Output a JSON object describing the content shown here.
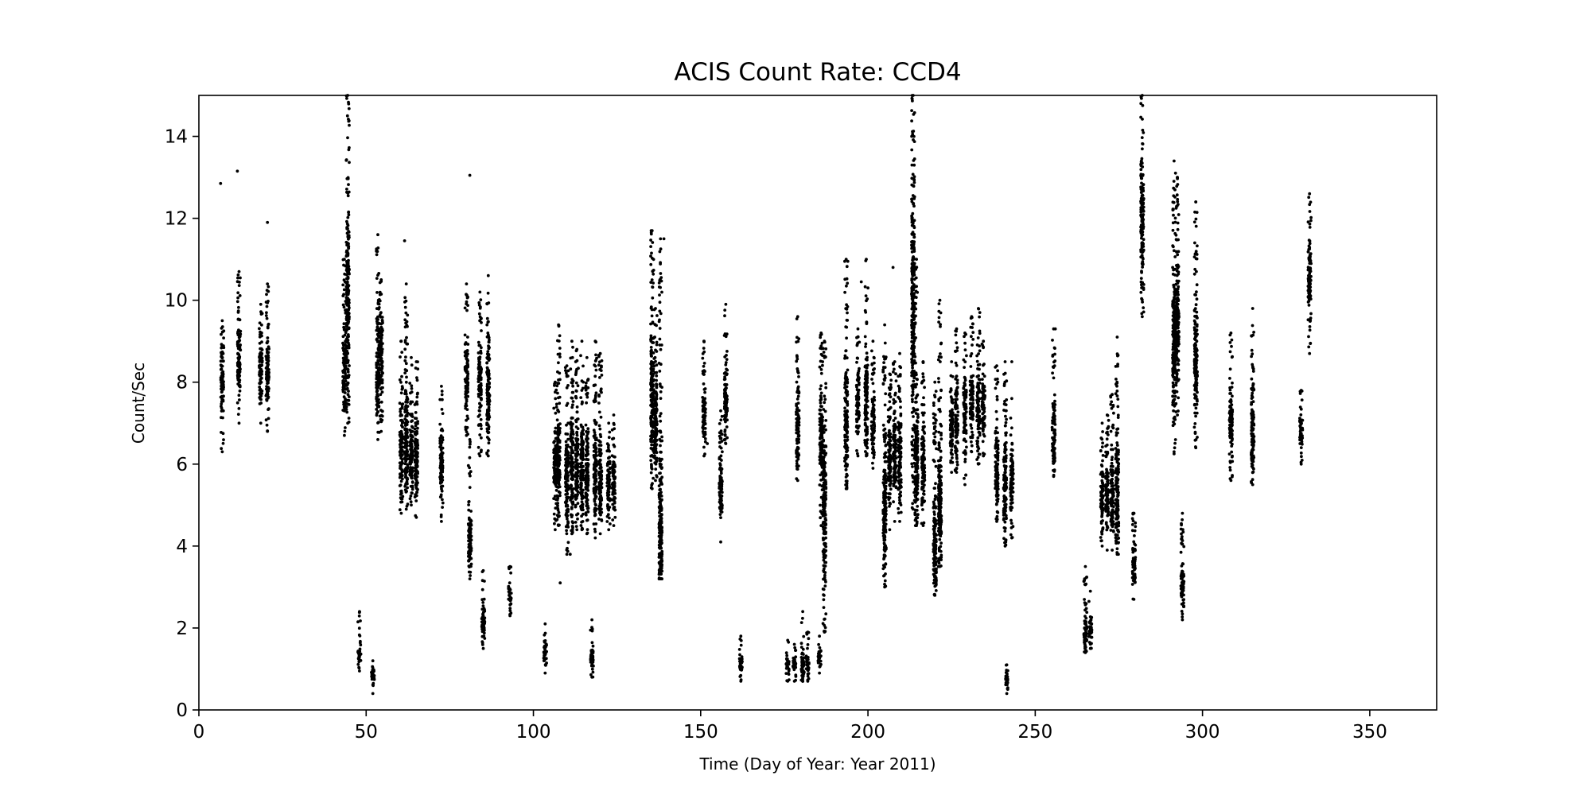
{
  "chart_data": {
    "type": "scatter",
    "title": "ACIS Count Rate: CCD4",
    "xlabel": "Time (Day of Year: Year 2011)",
    "ylabel": "Count/Sec",
    "xlim": [
      0,
      370
    ],
    "ylim": [
      0,
      15
    ],
    "xticks": [
      0,
      50,
      100,
      150,
      200,
      250,
      300,
      350
    ],
    "yticks": [
      0,
      2,
      4,
      6,
      8,
      10,
      12,
      14
    ],
    "grid": false,
    "legend": "none",
    "marker_color": "#000000",
    "series": [
      {
        "note_format": "each cluster = [day, min_count, max_count, dense_center]",
        "clusters": [
          [
            7,
            6.3,
            9.5,
            8.0
          ],
          [
            12,
            7.0,
            10.7,
            8.5
          ],
          [
            18.5,
            7.0,
            9.9,
            8.3
          ],
          [
            20.5,
            6.8,
            10.4,
            8.4
          ],
          [
            43.5,
            6.7,
            11.0,
            8.3
          ],
          [
            44.5,
            7.0,
            15.0,
            10.0
          ],
          [
            48,
            0.95,
            2.4,
            1.4
          ],
          [
            52,
            0.4,
            1.2,
            0.8
          ],
          [
            53.5,
            6.6,
            11.6,
            8.5
          ],
          [
            54.5,
            6.8,
            10.5,
            8.5
          ],
          [
            60.5,
            4.8,
            9.0,
            6.2
          ],
          [
            62,
            4.9,
            10.4,
            6.5
          ],
          [
            63.5,
            5.0,
            8.6,
            6.2
          ],
          [
            65,
            4.7,
            8.5,
            6.2
          ],
          [
            72.5,
            4.6,
            7.9,
            6.0
          ],
          [
            80,
            6.7,
            10.4,
            8.2
          ],
          [
            81,
            3.2,
            6.6,
            4.2
          ],
          [
            84,
            6.2,
            10.2,
            8.0
          ],
          [
            85,
            1.5,
            3.4,
            2.1
          ],
          [
            86.5,
            6.2,
            10.6,
            8.0
          ],
          [
            93,
            2.3,
            3.5,
            2.8
          ],
          [
            103.5,
            0.9,
            2.1,
            1.4
          ],
          [
            106.5,
            4.4,
            8.0,
            5.9
          ],
          [
            107.5,
            4.5,
            9.4,
            6.0
          ],
          [
            110,
            3.8,
            8.4,
            5.8
          ],
          [
            111.5,
            4.3,
            9.0,
            5.9
          ],
          [
            113,
            4.4,
            8.8,
            5.8
          ],
          [
            114.5,
            4.4,
            9.0,
            5.9
          ],
          [
            116,
            4.3,
            8.6,
            5.8
          ],
          [
            117.5,
            0.8,
            2.2,
            1.3
          ],
          [
            118.5,
            4.2,
            9.0,
            5.8
          ],
          [
            120,
            4.3,
            8.7,
            5.6
          ],
          [
            122.5,
            4.4,
            7.0,
            5.5
          ],
          [
            124,
            4.5,
            7.2,
            5.6
          ],
          [
            135.5,
            5.4,
            11.7,
            7.5
          ],
          [
            136.5,
            5.6,
            9.8,
            7.2
          ],
          [
            138,
            3.2,
            11.5,
            4.2
          ],
          [
            151,
            6.2,
            9.0,
            7.2
          ],
          [
            156,
            4.1,
            7.3,
            5.5
          ],
          [
            157.5,
            6.5,
            9.9,
            7.5
          ],
          [
            162,
            0.7,
            1.8,
            1.1
          ],
          [
            176,
            0.7,
            1.7,
            1.1
          ],
          [
            178,
            0.7,
            1.6,
            1.1
          ],
          [
            179,
            5.6,
            9.6,
            7.0
          ],
          [
            180.5,
            0.7,
            2.4,
            1.1
          ],
          [
            182,
            0.7,
            1.9,
            1.1
          ],
          [
            185.5,
            0.9,
            1.8,
            1.3
          ],
          [
            186,
            4.5,
            9.2,
            6.5
          ],
          [
            187,
            1.9,
            9.0,
            5.0
          ],
          [
            193.5,
            5.4,
            11.0,
            7.0
          ],
          [
            197,
            6.2,
            9.3,
            7.5
          ],
          [
            199.5,
            6.2,
            11.0,
            7.5
          ],
          [
            201.5,
            5.9,
            9.0,
            7.0
          ],
          [
            205,
            3.0,
            9.4,
            5.0
          ],
          [
            206.5,
            4.4,
            8.2,
            6.0
          ],
          [
            208,
            4.6,
            8.5,
            6.3
          ],
          [
            209.5,
            4.6,
            8.7,
            6.1
          ],
          [
            213.5,
            4.9,
            15.0,
            10.0
          ],
          [
            214.5,
            4.5,
            11.0,
            6.0
          ],
          [
            216.5,
            4.5,
            8.5,
            6.0
          ],
          [
            220,
            2.8,
            8.0,
            4.0
          ],
          [
            221.5,
            3.5,
            10.0,
            5.0
          ],
          [
            225,
            5.8,
            8.5,
            7.0
          ],
          [
            226.5,
            5.8,
            9.3,
            7.2
          ],
          [
            229,
            5.5,
            9.2,
            7.2
          ],
          [
            231,
            6.3,
            9.6,
            7.5
          ],
          [
            233,
            6.0,
            9.8,
            7.3
          ],
          [
            234.5,
            6.2,
            9.0,
            7.5
          ],
          [
            238.5,
            4.6,
            8.4,
            5.8
          ],
          [
            241,
            4.0,
            8.5,
            5.5
          ],
          [
            241.5,
            0.4,
            1.1,
            0.7
          ],
          [
            243,
            4.2,
            7.6,
            5.6
          ],
          [
            255.5,
            5.7,
            9.3,
            6.8
          ],
          [
            265,
            1.4,
            3.5,
            1.9
          ],
          [
            266.5,
            1.5,
            2.9,
            2.0
          ],
          [
            270,
            4.0,
            7.0,
            5.2
          ],
          [
            271.5,
            3.9,
            7.2,
            5.2
          ],
          [
            273,
            3.9,
            7.7,
            5.2
          ],
          [
            274.5,
            3.8,
            9.1,
            5.2
          ],
          [
            279.5,
            2.7,
            4.8,
            3.5
          ],
          [
            282,
            9.6,
            15.0,
            12.0
          ],
          [
            291.5,
            6.3,
            13.4,
            9.0
          ],
          [
            292.5,
            7.2,
            13.0,
            9.5
          ],
          [
            294,
            2.2,
            4.8,
            3.0
          ],
          [
            298,
            6.4,
            12.4,
            8.5
          ],
          [
            308.5,
            5.6,
            9.2,
            7.0
          ],
          [
            315,
            5.5,
            9.8,
            7.0
          ],
          [
            329.5,
            6.0,
            7.8,
            6.8
          ],
          [
            332,
            8.7,
            12.6,
            10.5
          ]
        ],
        "isolated_points": [
          [
            6.5,
            12.85
          ],
          [
            11.5,
            13.15
          ],
          [
            20.5,
            11.9
          ],
          [
            61.5,
            11.45
          ],
          [
            81,
            13.05
          ],
          [
            108,
            3.1
          ],
          [
            111,
            3.8
          ],
          [
            139,
            11.5
          ],
          [
            152,
            6.5
          ],
          [
            194,
            10.95
          ],
          [
            198,
            10.45
          ],
          [
            200,
            10.3
          ],
          [
            207.5,
            10.8
          ],
          [
            243,
            8.5
          ],
          [
            256,
            9.3
          ],
          [
            279.5,
            4.8
          ],
          [
            291.5,
            6.25
          ],
          [
            298,
            12.4
          ]
        ]
      }
    ]
  }
}
